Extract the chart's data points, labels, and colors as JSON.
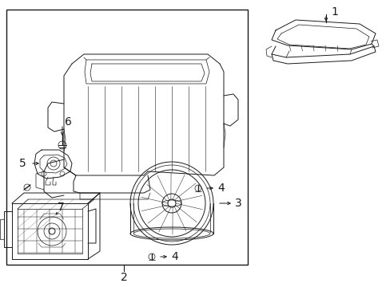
{
  "bg_color": "#ffffff",
  "line_color": "#1a1a1a",
  "fig_width": 4.89,
  "fig_height": 3.6,
  "dpi": 100,
  "font_size": 8,
  "font_size_label": 9
}
